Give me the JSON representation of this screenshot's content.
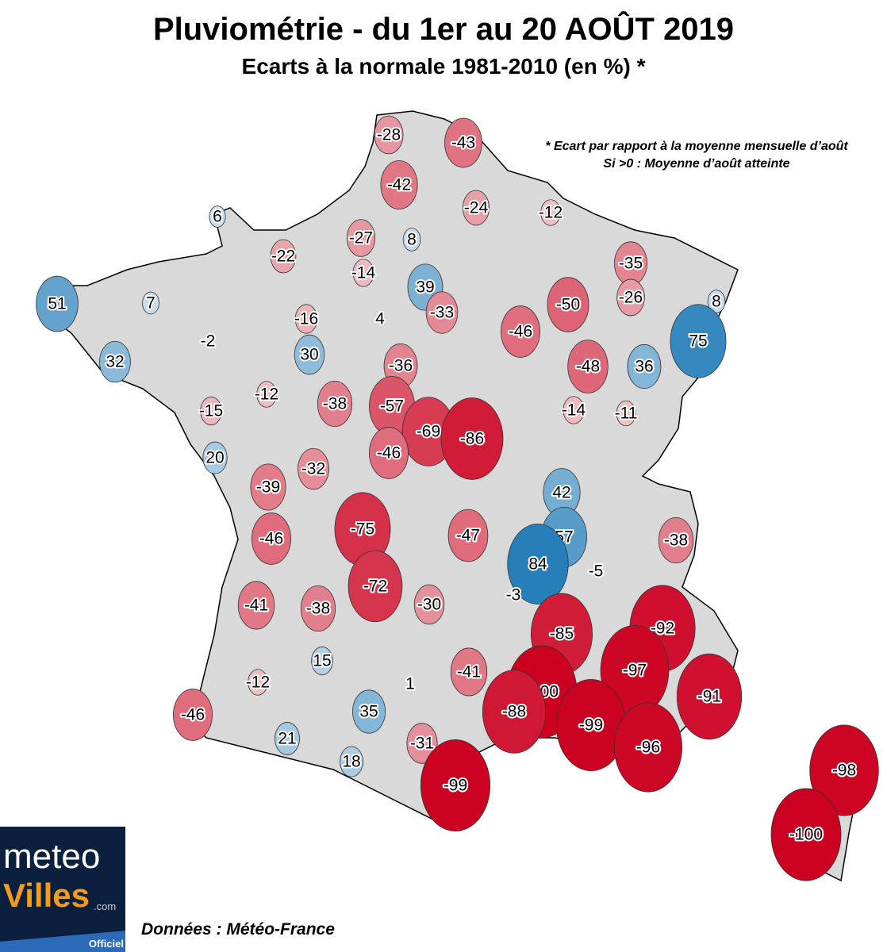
{
  "title": "Pluviométrie - du 1er au 20 AOÛT 2019",
  "subtitle": "Ecarts à la normale 1981-2010 (en %) *",
  "note": {
    "line1": "* Ecart par rapport à la moyenne mensuelle d’août",
    "line2": "Si >0 : Moyenne d’août atteinte"
  },
  "source": "Données : Météo-France",
  "logo": {
    "text": "meteoVilles.com Officiel",
    "meteo": "meteo",
    "villes": "Villes",
    "com": ".com",
    "officiel": "Officiel"
  },
  "colors": {
    "land": "#d9d9d9",
    "positive_max": "#0a6fb0",
    "negative_max": "#cc0020"
  },
  "stations": [
    -28,
    -43,
    -42,
    -24,
    -12,
    6,
    -27,
    8,
    -22,
    -35,
    -14,
    39,
    -26,
    51,
    7,
    8,
    -50,
    -33,
    -16,
    4,
    75,
    -2,
    -46,
    30,
    32,
    -36,
    -48,
    36,
    -12,
    -38,
    -57,
    -15,
    -14,
    -11,
    -69,
    -86,
    20,
    -46,
    -32,
    -39,
    42,
    -75,
    -47,
    57,
    -46,
    -38,
    84,
    -5,
    -72,
    -3,
    -41,
    -38,
    -30,
    -85,
    -92,
    -97,
    15,
    -41,
    -12,
    1,
    -100,
    -91,
    -88,
    35,
    -46,
    -99,
    -96,
    21,
    -31,
    18,
    -99,
    -98,
    -100
  ]
}
